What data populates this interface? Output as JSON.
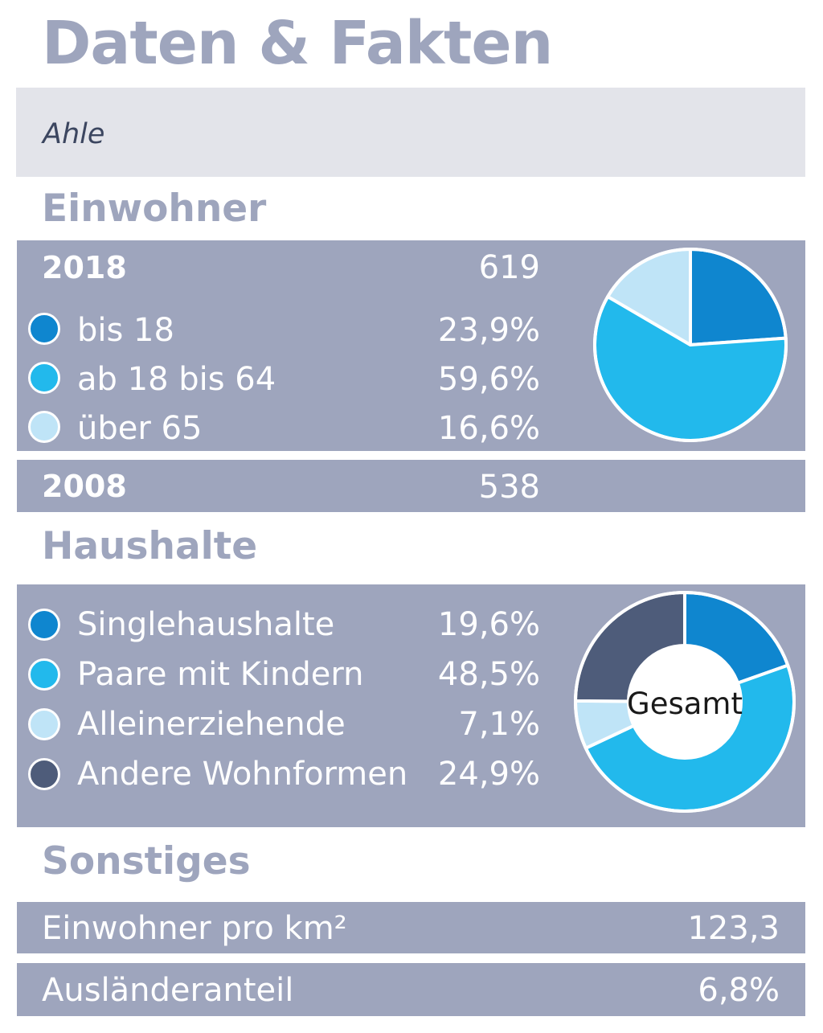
{
  "title": "Daten & Fakten",
  "place": "Ahle",
  "einwohner": {
    "heading": "Einwohner",
    "year_current": "2018",
    "total_current": "619",
    "year_previous": "2008",
    "total_previous": "538",
    "groups": [
      {
        "label": "bis 18",
        "value": "23,9%",
        "color": "#0f86cf"
      },
      {
        "label": "ab 18 bis 64",
        "value": "59,6%",
        "color": "#22b9ec"
      },
      {
        "label": "über 65",
        "value": "16,6%",
        "color": "#bfe4f7"
      }
    ]
  },
  "haushalte": {
    "heading": "Haushalte",
    "center_label": "Gesamt",
    "groups": [
      {
        "label": "Singlehaushalte",
        "value": "19,6%",
        "color": "#0f86cf"
      },
      {
        "label": "Paare mit Kindern",
        "value": "48,5%",
        "color": "#22b9ec"
      },
      {
        "label": "Alleinerziehende",
        "value": "7,1%",
        "color": "#bfe4f7"
      },
      {
        "label": "Andere Wohnformen",
        "value": "24,9%",
        "color": "#4e5c7a"
      }
    ]
  },
  "sonstiges": {
    "heading": "Sonstiges",
    "rows": [
      {
        "label": "Einwohner pro km²",
        "value": "123,3"
      },
      {
        "label": "Ausländeranteil",
        "value": "6,8%"
      }
    ]
  },
  "chart_data": [
    {
      "type": "pie",
      "title": "",
      "categories": [
        "bis 18",
        "ab 18 bis 64",
        "über 65"
      ],
      "values": [
        23.9,
        59.6,
        16.6
      ],
      "colors": [
        "#0f86cf",
        "#22b9ec",
        "#bfe4f7"
      ]
    },
    {
      "type": "pie",
      "title": "",
      "center_label": "Gesamt",
      "categories": [
        "Singlehaushalte",
        "Paare mit Kindern",
        "Alleinerziehende",
        "Andere Wohnformen"
      ],
      "values": [
        19.6,
        48.5,
        7.1,
        24.9
      ],
      "colors": [
        "#0f86cf",
        "#22b9ec",
        "#bfe4f7",
        "#4e5c7a"
      ]
    }
  ]
}
